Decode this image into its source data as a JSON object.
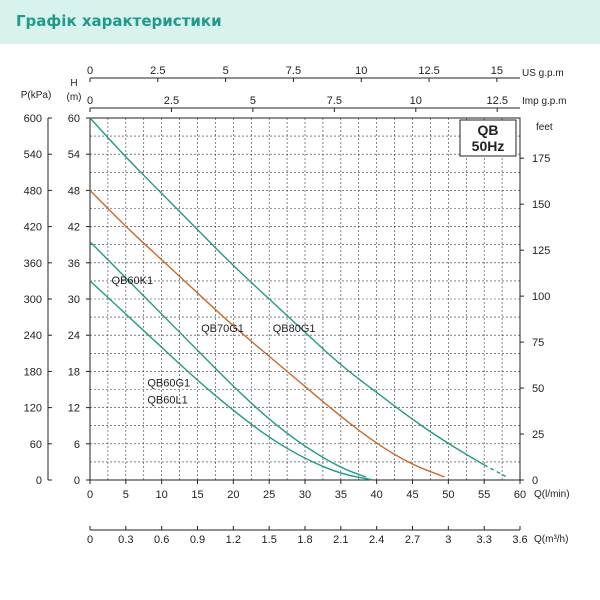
{
  "header": {
    "title": "Графік характеристики"
  },
  "chart_data": {
    "type": "line",
    "model_label": "QB",
    "frequency_label": "50Hz",
    "x": {
      "label": "Q(l/min)",
      "range": [
        0,
        60
      ],
      "ticks": [
        0,
        5,
        10,
        15,
        20,
        25,
        30,
        35,
        40,
        45,
        50,
        55,
        60
      ]
    },
    "x_m3h": {
      "label": "Q(m³/h)",
      "ticks": [
        "0",
        "0.3",
        "0.6",
        "0.9",
        "1.2",
        "1.5",
        "1.8",
        "2.1",
        "2.4",
        "2.7",
        "3",
        "3.3",
        "3.6"
      ]
    },
    "x_us": {
      "label": "US  g.p.m",
      "ticks": [
        0,
        2.5,
        5,
        7.5,
        10,
        12.5,
        15
      ]
    },
    "x_imp": {
      "label": "Imp  g.p.m",
      "ticks": [
        0,
        2.5,
        5,
        7.5,
        10,
        12.5
      ]
    },
    "y_head": {
      "label_top": "H",
      "label_unit": "(m)",
      "range": [
        0,
        60
      ],
      "ticks": [
        0,
        6,
        12,
        18,
        24,
        30,
        36,
        42,
        48,
        54,
        60
      ]
    },
    "y_pressure": {
      "label": "P(kPa)",
      "ticks": [
        0,
        60,
        120,
        180,
        240,
        300,
        360,
        420,
        480,
        540,
        600
      ]
    },
    "y_feet": {
      "label": "feet",
      "ticks": [
        0,
        25,
        50,
        75,
        100,
        125,
        150,
        175
      ]
    },
    "grid": true,
    "series": [
      {
        "name": "QB80G1",
        "color": "#1e9c88",
        "points": [
          [
            0,
            60
          ],
          [
            5,
            53.5
          ],
          [
            10,
            47.5
          ],
          [
            15,
            41.5
          ],
          [
            20,
            35.5
          ],
          [
            25,
            30
          ],
          [
            30,
            24.5
          ],
          [
            35,
            19
          ],
          [
            40,
            14.5
          ],
          [
            45,
            10
          ],
          [
            50,
            6
          ],
          [
            55,
            2.5
          ]
        ],
        "tail": [
          [
            55,
            2.5
          ],
          [
            58,
            0.6
          ]
        ]
      },
      {
        "name": "QB70G1",
        "color": "#c96a2c",
        "points": [
          [
            0,
            48
          ],
          [
            5,
            42
          ],
          [
            10,
            36.5
          ],
          [
            15,
            31
          ],
          [
            20,
            25.5
          ],
          [
            25,
            20.5
          ],
          [
            30,
            15.5
          ],
          [
            35,
            10.5
          ],
          [
            40,
            6
          ],
          [
            45,
            2.5
          ],
          [
            49.5,
            0.5
          ]
        ],
        "tail": []
      },
      {
        "name": "QB60K1",
        "color": "#1e9c88",
        "points": [
          [
            0,
            39.5
          ],
          [
            5,
            33.5
          ],
          [
            10,
            27.5
          ],
          [
            15,
            21.5
          ],
          [
            20,
            15.5
          ],
          [
            25,
            10
          ],
          [
            30,
            5.5
          ],
          [
            35,
            2
          ],
          [
            38.5,
            0.5
          ]
        ],
        "tail": []
      },
      {
        "name": "QB60G1",
        "color": "#1e9c88",
        "points": [
          [
            0,
            33
          ],
          [
            5,
            27.5
          ],
          [
            10,
            22
          ],
          [
            15,
            16.5
          ],
          [
            20,
            11.5
          ],
          [
            25,
            7
          ],
          [
            30,
            3.5
          ],
          [
            35,
            1
          ],
          [
            39.5,
            0
          ]
        ],
        "tail": []
      },
      {
        "name": "QB60L1",
        "color": "#1e9c88",
        "points": [],
        "tail": []
      }
    ]
  }
}
